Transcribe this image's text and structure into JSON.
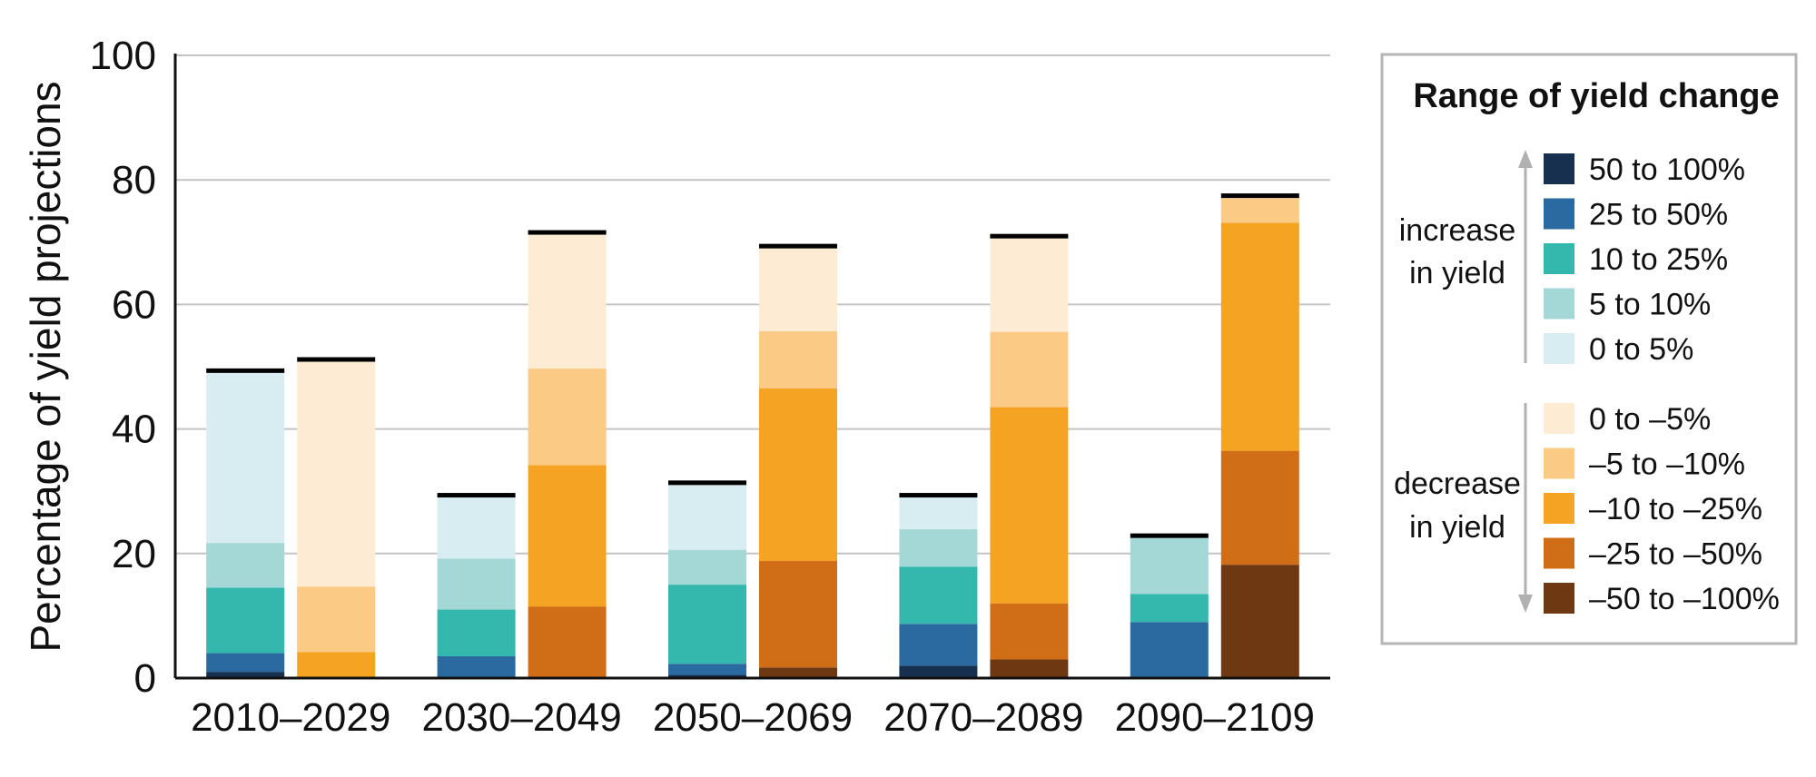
{
  "chart_data": {
    "type": "bar",
    "stacked": true,
    "ylabel": "Percentage of yield projections",
    "ylim": [
      0,
      100
    ],
    "yticks": [
      0,
      20,
      40,
      60,
      80,
      100
    ],
    "grid": true,
    "legend_placement": "right",
    "categories": [
      "2010–2029",
      "2030–2049",
      "2050–2069",
      "2070–2089",
      "2090–2109"
    ],
    "legend": {
      "title": "Range of yield change",
      "increase_label_line1": "increase",
      "increase_label_line2": "in yield",
      "decrease_label_line1": "decrease",
      "decrease_label_line2": "in yield"
    },
    "increase_series": [
      {
        "name": "50 to 100%",
        "color": "#17304f",
        "values": [
          1.0,
          0.0,
          0.5,
          2.0,
          0.0
        ]
      },
      {
        "name": "25 to 50%",
        "color": "#2b6aa0",
        "values": [
          3.0,
          3.5,
          1.8,
          6.7,
          9.0
        ]
      },
      {
        "name": "10 to 25%",
        "color": "#34b8ae",
        "values": [
          10.5,
          7.5,
          12.7,
          9.2,
          4.5
        ]
      },
      {
        "name": "5 to 10%",
        "color": "#a3d8d6",
        "values": [
          7.2,
          8.2,
          5.6,
          6.0,
          9.0
        ]
      },
      {
        "name": "0 to 5%",
        "color": "#d8edf1",
        "values": [
          27.3,
          9.8,
          10.4,
          5.1,
          0.0
        ]
      }
    ],
    "decrease_series": [
      {
        "name": "–50 to –100%",
        "color": "#6e3812",
        "values": [
          0.0,
          0.0,
          1.7,
          3.0,
          18.2
        ]
      },
      {
        "name": "–25 to –50%",
        "color": "#d06e17",
        "values": [
          0.0,
          11.5,
          17.1,
          9.0,
          18.3
        ]
      },
      {
        "name": "–10 to –25%",
        "color": "#f5a323",
        "values": [
          4.2,
          22.7,
          27.7,
          31.5,
          36.6
        ]
      },
      {
        "name": "–5 to –10%",
        "color": "#fbcb85",
        "values": [
          10.5,
          15.5,
          9.2,
          12.1,
          4.0
        ]
      },
      {
        "name": "0 to –5%",
        "color": "#fdebd4",
        "values": [
          36.1,
          21.5,
          13.3,
          15.0,
          0.0
        ]
      }
    ]
  }
}
